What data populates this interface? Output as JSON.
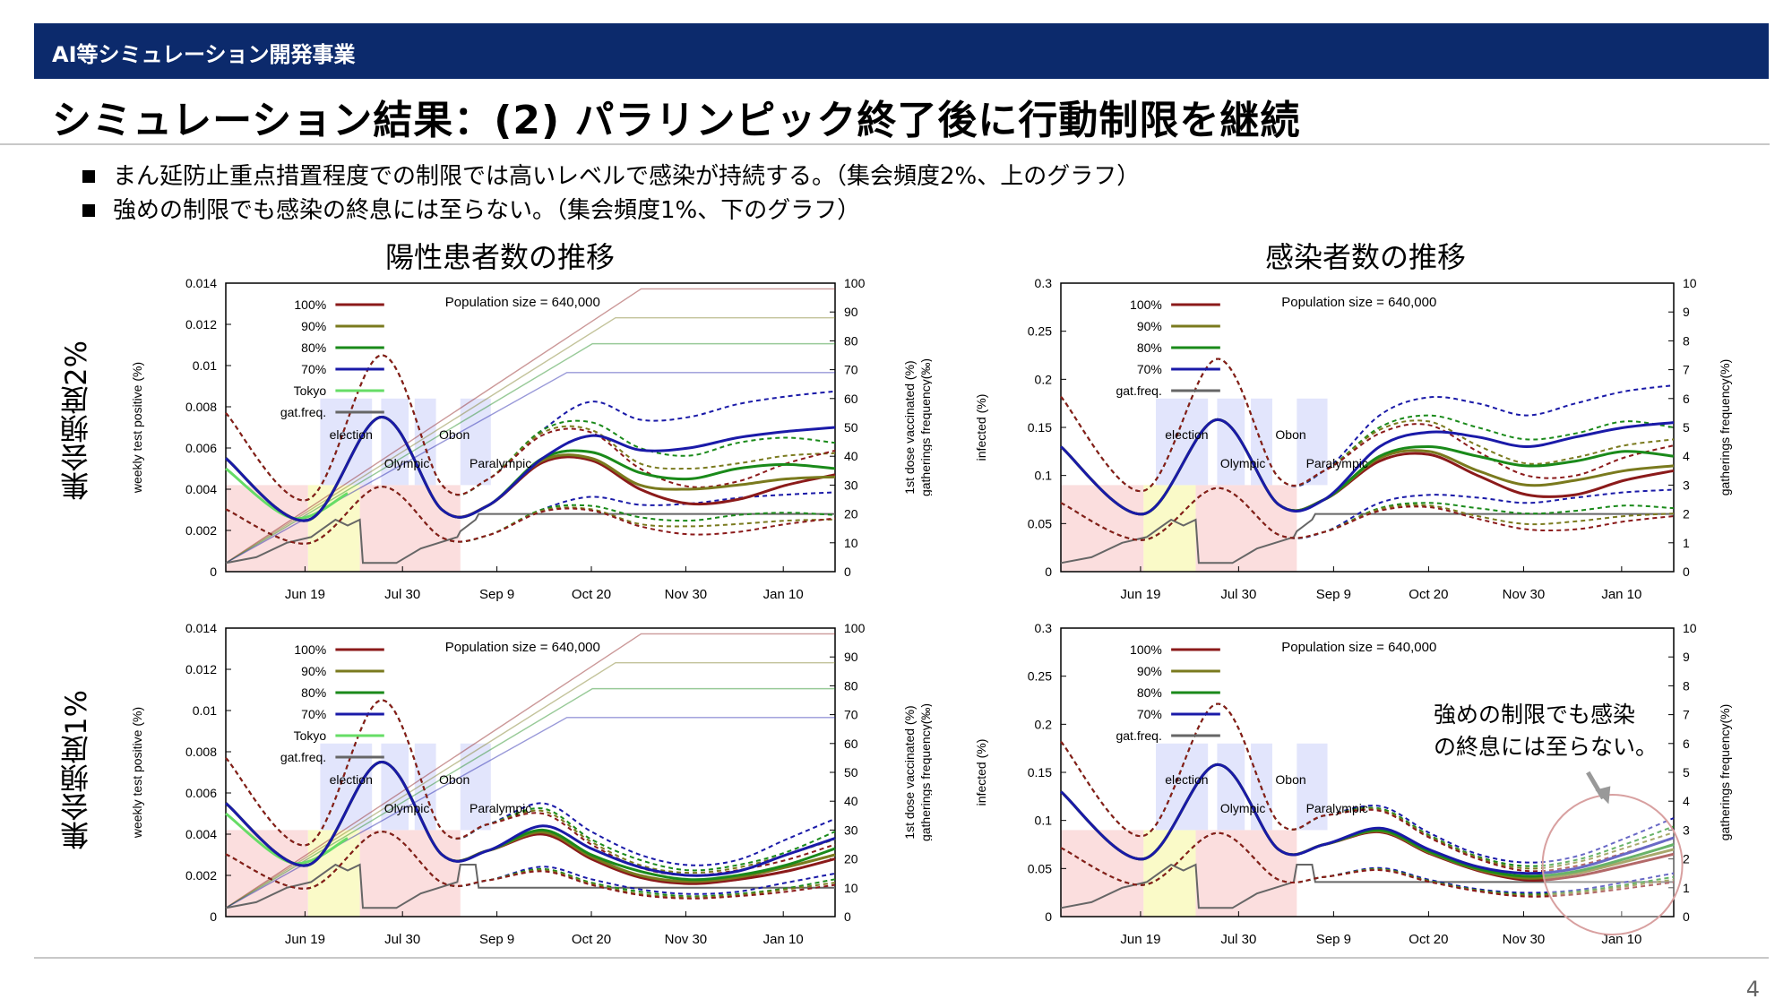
{
  "header": {
    "section": "AI等シミュレーション開発事業"
  },
  "slide": {
    "title": "シミュレーション結果：(2) パラリンピック終了後に行動制限を継続",
    "bullets": [
      "まん延防止重点措置程度での制限では高いレベルで感染が持続する。（集会頻度2%、上のグラフ）",
      "強めの制限でも感染の終息には至らない。（集会頻度1%、下のグラフ）"
    ],
    "left_heading": "陽性患者数の推移",
    "right_heading": "感染者数の推移",
    "row_labels": [
      "集会頻度2%",
      "集会頻度1%"
    ],
    "callout": [
      "強めの制限でも感染",
      "の終息には至らない。"
    ],
    "page_number": "4"
  },
  "colors": {
    "c100": "#8b1a1a",
    "c90": "#7a7a1e",
    "c80": "#1a8a1a",
    "c70": "#1a1aa8",
    "tokyo": "#66dd66",
    "gat": "#666666",
    "vacc": "#aaaaee",
    "pink": "#fbdede",
    "yellow": "#fafac8",
    "lav": "#dde0fb"
  },
  "chart_data": [
    {
      "type": "line",
      "panel": "top-left",
      "ylabel": "weekly test positive (%)",
      "y2label": [
        "1st dose vaccinated (%)",
        "gatherings frequency(‰)"
      ],
      "ylim": [
        0,
        0.014
      ],
      "yticks": [
        "0.014",
        "0.012",
        "0.01",
        "0.008",
        "0.006",
        "0.004",
        "0.002",
        "0"
      ],
      "y2lim": [
        0,
        100
      ],
      "y2ticks": [
        "100",
        "90",
        "80",
        "70",
        "60",
        "50",
        "40",
        "30",
        "20",
        "10",
        "0"
      ],
      "xticks": [
        "Jun 19",
        "Jul 30",
        "Sep 9",
        "Oct 20",
        "Nov 30",
        "Jan 10"
      ],
      "annotation": "Population size = 640,000",
      "events": [
        "election",
        "Olympic",
        "Obon",
        "Paralympic"
      ],
      "legend": [
        "100%",
        "90%",
        "80%",
        "70%",
        "Tokyo",
        "gat.freq."
      ],
      "series": [
        {
          "name": "70%",
          "key": "c70",
          "width": 3,
          "y": [
            0.0055,
            0.0025,
            0.0075,
            0.003,
            0.0032,
            0.0055,
            0.0066,
            0.0059,
            0.006,
            0.0065,
            0.0068,
            0.007
          ]
        },
        {
          "name": "80%",
          "key": "c80",
          "width": 3,
          "y": [
            0.0055,
            0.0025,
            0.0075,
            0.003,
            0.0032,
            0.0055,
            0.0058,
            0.0048,
            0.0045,
            0.005,
            0.0052,
            0.005
          ]
        },
        {
          "name": "90%",
          "key": "c90",
          "width": 3,
          "y": [
            0.0055,
            0.0025,
            0.0075,
            0.003,
            0.0032,
            0.0054,
            0.0055,
            0.0042,
            0.004,
            0.0042,
            0.0045,
            0.0046
          ]
        },
        {
          "name": "100%",
          "key": "c100",
          "width": 3,
          "y": [
            0.0055,
            0.0025,
            0.0075,
            0.003,
            0.0032,
            0.0053,
            0.0054,
            0.004,
            0.0033,
            0.0035,
            0.0042,
            0.0047
          ]
        },
        {
          "name": "Tokyo",
          "key": "tokyo",
          "width": 3,
          "y": [
            0.005,
            0.0026,
            0.0038
          ]
        }
      ]
    },
    {
      "type": "line",
      "panel": "top-right",
      "ylabel": "infected (%)",
      "y2label": [
        "gatherings frequency(%)"
      ],
      "ylim": [
        0,
        0.3
      ],
      "yticks": [
        "0.3",
        "0.25",
        "0.2",
        "0.15",
        "0.1",
        "0.05",
        "0"
      ],
      "y2lim": [
        0,
        10
      ],
      "y2ticks": [
        "10",
        "9",
        "8",
        "7",
        "6",
        "5",
        "4",
        "3",
        "2",
        "1",
        "0"
      ],
      "xticks": [
        "Jun 19",
        "Jul 30",
        "Sep 9",
        "Oct 20",
        "Nov 30",
        "Jan 10"
      ],
      "annotation": "Population size = 640,000",
      "events": [
        "election",
        "Olympic",
        "Obon",
        "Paralympic"
      ],
      "legend": [
        "100%",
        "90%",
        "80%",
        "70%",
        "gat.freq."
      ],
      "series": [
        {
          "name": "70%",
          "key": "c70",
          "width": 3,
          "y": [
            0.13,
            0.06,
            0.158,
            0.07,
            0.075,
            0.13,
            0.145,
            0.14,
            0.13,
            0.14,
            0.15,
            0.155
          ]
        },
        {
          "name": "80%",
          "key": "c80",
          "width": 3,
          "y": [
            0.13,
            0.06,
            0.158,
            0.07,
            0.075,
            0.12,
            0.13,
            0.12,
            0.11,
            0.115,
            0.125,
            0.12
          ]
        },
        {
          "name": "90%",
          "key": "c90",
          "width": 3,
          "y": [
            0.13,
            0.06,
            0.158,
            0.07,
            0.075,
            0.118,
            0.125,
            0.105,
            0.09,
            0.095,
            0.105,
            0.11
          ]
        },
        {
          "name": "100%",
          "key": "c100",
          "width": 3,
          "y": [
            0.13,
            0.06,
            0.158,
            0.07,
            0.075,
            0.115,
            0.122,
            0.1,
            0.08,
            0.08,
            0.095,
            0.105
          ]
        }
      ]
    },
    {
      "type": "line",
      "panel": "bottom-left",
      "ylabel": "weekly test positive (%)",
      "y2label": [
        "1st dose vaccinated (%)",
        "gatherings frequency(‰)"
      ],
      "ylim": [
        0,
        0.014
      ],
      "yticks": [
        "0.014",
        "0.012",
        "0.01",
        "0.008",
        "0.006",
        "0.004",
        "0.002",
        "0"
      ],
      "y2lim": [
        0,
        100
      ],
      "y2ticks": [
        "100",
        "90",
        "80",
        "70",
        "60",
        "50",
        "40",
        "30",
        "20",
        "10",
        "0"
      ],
      "xticks": [
        "Jun 19",
        "Jul 30",
        "Sep 9",
        "Oct 20",
        "Nov 30",
        "Jan 10"
      ],
      "annotation": "Population size = 640,000",
      "events": [
        "election",
        "Olympic",
        "Obon",
        "Paralympic"
      ],
      "legend": [
        "100%",
        "90%",
        "80%",
        "70%",
        "Tokyo",
        "gat.freq."
      ],
      "series": [
        {
          "name": "70%",
          "key": "c70",
          "width": 3,
          "y": [
            0.0055,
            0.0025,
            0.0075,
            0.003,
            0.0032,
            0.0044,
            0.0033,
            0.0024,
            0.002,
            0.0022,
            0.003,
            0.0038
          ]
        },
        {
          "name": "80%",
          "key": "c80",
          "width": 3,
          "y": [
            0.0055,
            0.0025,
            0.0075,
            0.003,
            0.0032,
            0.0042,
            0.003,
            0.0022,
            0.0018,
            0.002,
            0.0025,
            0.0033
          ]
        },
        {
          "name": "90%",
          "key": "c90",
          "width": 3,
          "y": [
            0.0055,
            0.0025,
            0.0075,
            0.003,
            0.0032,
            0.0041,
            0.0029,
            0.002,
            0.0017,
            0.0019,
            0.0024,
            0.003
          ]
        },
        {
          "name": "100%",
          "key": "c100",
          "width": 3,
          "y": [
            0.0055,
            0.0025,
            0.0075,
            0.003,
            0.0032,
            0.004,
            0.0028,
            0.0019,
            0.0016,
            0.0018,
            0.0022,
            0.0028
          ]
        },
        {
          "name": "Tokyo",
          "key": "tokyo",
          "width": 3,
          "y": [
            0.005,
            0.0026,
            0.0038
          ]
        }
      ]
    },
    {
      "type": "line",
      "panel": "bottom-right",
      "ylabel": "infected (%)",
      "y2label": [
        "gatherings frequency(%)"
      ],
      "ylim": [
        0,
        0.3
      ],
      "yticks": [
        "0.3",
        "0.25",
        "0.2",
        "0.15",
        "0.1",
        "0.05",
        "0"
      ],
      "y2lim": [
        0,
        10
      ],
      "y2ticks": [
        "10",
        "9",
        "8",
        "7",
        "6",
        "5",
        "4",
        "3",
        "2",
        "1",
        "0"
      ],
      "xticks": [
        "Jun 19",
        "Jul 30",
        "Sep 9",
        "Oct 20",
        "Nov 30",
        "Jan 10"
      ],
      "annotation": "Population size = 640,000",
      "events": [
        "election",
        "Olympic",
        "Obon",
        "Paralympic"
      ],
      "legend": [
        "100%",
        "90%",
        "80%",
        "70%",
        "gat.freq."
      ],
      "series": [
        {
          "name": "70%",
          "key": "c70",
          "width": 3,
          "y": [
            0.13,
            0.06,
            0.158,
            0.07,
            0.075,
            0.092,
            0.07,
            0.052,
            0.045,
            0.05,
            0.065,
            0.082
          ]
        },
        {
          "name": "80%",
          "key": "c80",
          "width": 3,
          "y": [
            0.13,
            0.06,
            0.158,
            0.07,
            0.075,
            0.09,
            0.068,
            0.05,
            0.042,
            0.047,
            0.06,
            0.075
          ]
        },
        {
          "name": "90%",
          "key": "c90",
          "width": 3,
          "y": [
            0.13,
            0.06,
            0.158,
            0.07,
            0.075,
            0.089,
            0.067,
            0.049,
            0.04,
            0.045,
            0.057,
            0.07
          ]
        },
        {
          "name": "100%",
          "key": "c100",
          "width": 3,
          "y": [
            0.13,
            0.06,
            0.158,
            0.07,
            0.075,
            0.088,
            0.066,
            0.048,
            0.038,
            0.042,
            0.053,
            0.065
          ]
        }
      ]
    }
  ]
}
